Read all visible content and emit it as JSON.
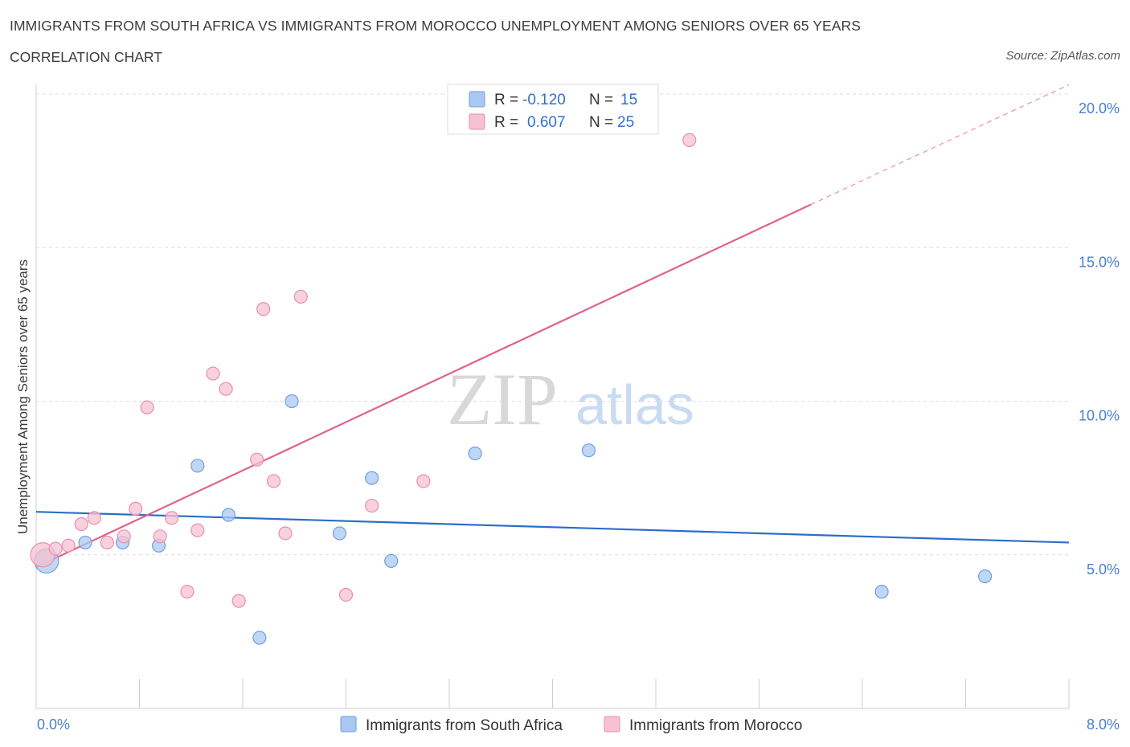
{
  "title": "IMMIGRANTS FROM SOUTH AFRICA VS IMMIGRANTS FROM MOROCCO UNEMPLOYMENT AMONG SENIORS OVER 65 YEARS",
  "subtitle": "CORRELATION CHART",
  "source": "Source: ZipAtlas.com",
  "watermark": {
    "zip": "ZIP",
    "atlas": "atlas"
  },
  "legend": {
    "r_label": "R =",
    "n_label": "N =",
    "rows": [
      {
        "r": "-0.120",
        "n": "15",
        "color": "#a9c8f0",
        "stroke": "#6f9fe0"
      },
      {
        "r": "0.607",
        "n": "25",
        "color": "#f6c2d2",
        "stroke": "#e98fae"
      }
    ]
  },
  "bottom_legend": [
    "Immigrants from South Africa",
    "Immigrants from Morocco"
  ],
  "chart_data": {
    "type": "scatter",
    "ylabel": "Unemployment Among Seniors over 65 years",
    "xlim": [
      0,
      8
    ],
    "ylim": [
      0,
      20
    ],
    "x_tick_labels": [
      "0.0%",
      "8.0%"
    ],
    "y_ticks": [
      5,
      10,
      15,
      20
    ],
    "y_tick_labels": [
      "5.0%",
      "10.0%",
      "15.0%",
      "20.0%"
    ],
    "series": [
      {
        "name": "Immigrants from South Africa",
        "color": "#a9c8f0",
        "stroke": "#6f9fe0",
        "line_color": "#2a6dc9",
        "points": [
          {
            "x": 0.08,
            "y": 4.8,
            "big": true
          },
          {
            "x": 0.38,
            "y": 5.4
          },
          {
            "x": 0.67,
            "y": 5.4
          },
          {
            "x": 0.95,
            "y": 5.3
          },
          {
            "x": 1.25,
            "y": 7.9
          },
          {
            "x": 1.49,
            "y": 6.3
          },
          {
            "x": 1.73,
            "y": 2.3
          },
          {
            "x": 1.98,
            "y": 10.0
          },
          {
            "x": 2.35,
            "y": 5.7
          },
          {
            "x": 2.6,
            "y": 7.5
          },
          {
            "x": 2.75,
            "y": 4.8
          },
          {
            "x": 3.4,
            "y": 8.3
          },
          {
            "x": 4.28,
            "y": 8.4
          },
          {
            "x": 6.55,
            "y": 3.8
          },
          {
            "x": 7.35,
            "y": 4.3
          }
        ],
        "trend": {
          "x0": 0.0,
          "y0": 6.4,
          "x1": 8.0,
          "y1": 5.4
        }
      },
      {
        "name": "Immigrants from Morocco",
        "color": "#f6c2d2",
        "stroke": "#e98fae",
        "line_color": "#e0628c",
        "points": [
          {
            "x": 0.05,
            "y": 5.0,
            "big": true
          },
          {
            "x": 0.15,
            "y": 5.2
          },
          {
            "x": 0.25,
            "y": 5.3
          },
          {
            "x": 0.35,
            "y": 6.0
          },
          {
            "x": 0.45,
            "y": 6.2
          },
          {
            "x": 0.55,
            "y": 5.4
          },
          {
            "x": 0.68,
            "y": 5.6
          },
          {
            "x": 0.77,
            "y": 6.5
          },
          {
            "x": 0.86,
            "y": 9.8
          },
          {
            "x": 0.96,
            "y": 5.6
          },
          {
            "x": 1.05,
            "y": 6.2
          },
          {
            "x": 1.17,
            "y": 3.8
          },
          {
            "x": 1.25,
            "y": 5.8
          },
          {
            "x": 1.37,
            "y": 10.9
          },
          {
            "x": 1.47,
            "y": 10.4
          },
          {
            "x": 1.57,
            "y": 3.5
          },
          {
            "x": 1.71,
            "y": 8.1
          },
          {
            "x": 1.76,
            "y": 13.0
          },
          {
            "x": 1.84,
            "y": 7.4
          },
          {
            "x": 1.93,
            "y": 5.7
          },
          {
            "x": 2.05,
            "y": 13.4
          },
          {
            "x": 2.4,
            "y": 3.7
          },
          {
            "x": 2.6,
            "y": 6.6
          },
          {
            "x": 3.0,
            "y": 7.4
          },
          {
            "x": 5.06,
            "y": 18.5
          }
        ],
        "trend": {
          "x0": 0.0,
          "y0": 4.6,
          "x1": 6.0,
          "y1": 16.4
        },
        "trend_extension": {
          "x0": 6.0,
          "y0": 16.4,
          "x1": 8.0,
          "y1": 20.3
        }
      }
    ]
  }
}
